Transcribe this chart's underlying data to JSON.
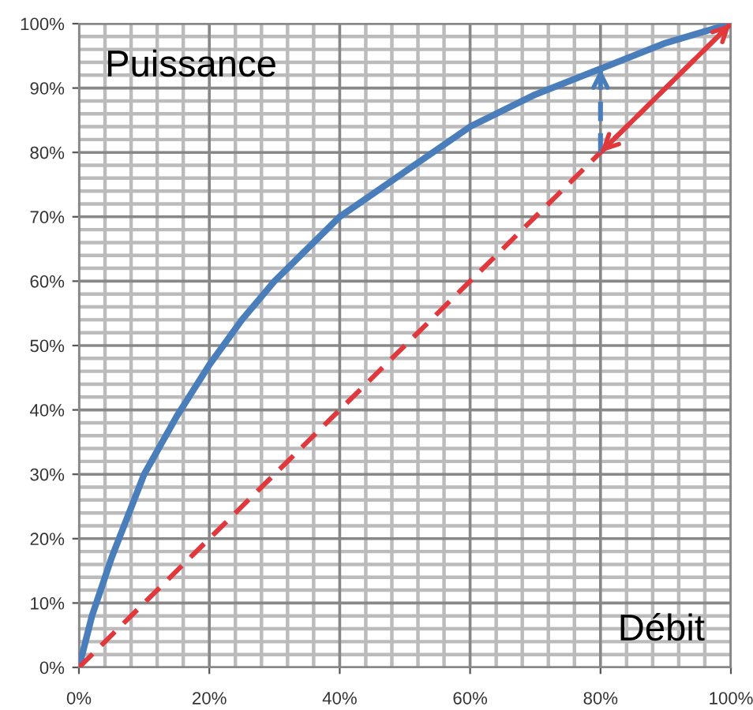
{
  "chart_data": {
    "type": "line",
    "xlabel": "Débit",
    "ylabel": "Puissance",
    "xlim": [
      0,
      100
    ],
    "ylim": [
      0,
      100
    ],
    "xticks": [
      {
        "value": 0,
        "label": "0%"
      },
      {
        "value": 20,
        "label": "20%"
      },
      {
        "value": 40,
        "label": "40%"
      },
      {
        "value": 60,
        "label": "60%"
      },
      {
        "value": 80,
        "label": "80%"
      },
      {
        "value": 100,
        "label": "100%"
      }
    ],
    "yticks": [
      {
        "value": 0,
        "label": "0%"
      },
      {
        "value": 10,
        "label": "10%"
      },
      {
        "value": 20,
        "label": "20%"
      },
      {
        "value": 30,
        "label": "30%"
      },
      {
        "value": 40,
        "label": "40%"
      },
      {
        "value": 50,
        "label": "50%"
      },
      {
        "value": 60,
        "label": "60%"
      },
      {
        "value": 70,
        "label": "70%"
      },
      {
        "value": 80,
        "label": "80%"
      },
      {
        "value": 90,
        "label": "90%"
      },
      {
        "value": 100,
        "label": "100%"
      }
    ],
    "grid": true,
    "series": [
      {
        "color": "#4a7ebb",
        "line_style": "solid",
        "x": [
          0,
          2,
          5,
          10,
          15,
          20,
          25,
          30,
          40,
          50,
          60,
          70,
          80,
          90,
          100
        ],
        "values": [
          0,
          8,
          17,
          30,
          39,
          47,
          54,
          60,
          70,
          77,
          84,
          89,
          93,
          97,
          100
        ]
      },
      {
        "color": "#e0383c",
        "line_style": "dashed",
        "x": [
          0,
          100
        ],
        "values": [
          0,
          100
        ]
      },
      {
        "color": "#e0383c",
        "line_style": "solid",
        "x": [
          100,
          80
        ],
        "values": [
          100,
          80
        ]
      },
      {
        "color": "#4a7ebb",
        "line_style": "dashed",
        "x": [
          80,
          80
        ],
        "values": [
          80,
          93
        ]
      }
    ]
  }
}
